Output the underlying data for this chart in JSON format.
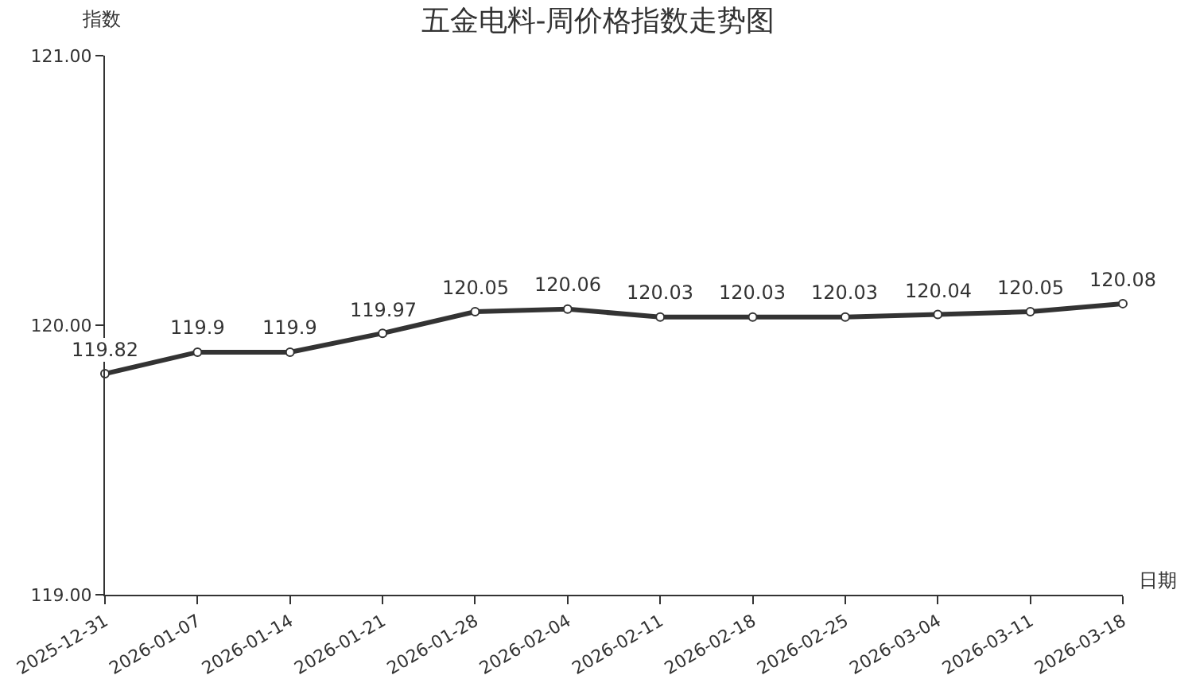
{
  "chart_data": {
    "type": "line",
    "title": "五金电料-周价格指数走势图",
    "xlabel": "日期",
    "ylabel": "指数",
    "categories": [
      "2025-12-31",
      "2026-01-07",
      "2026-01-14",
      "2026-01-21",
      "2026-01-28",
      "2026-02-04",
      "2026-02-11",
      "2026-02-18",
      "2026-02-25",
      "2026-03-04",
      "2026-03-11",
      "2026-03-18"
    ],
    "series": [
      {
        "color": "#333333",
        "values": [
          119.82,
          119.9,
          119.9,
          119.97,
          120.05,
          120.06,
          120.03,
          120.03,
          120.03,
          120.04,
          120.05,
          120.08
        ]
      }
    ],
    "ylim": [
      119,
      121
    ],
    "yticks": [
      {
        "value": 119,
        "label": "119.00"
      },
      {
        "value": 120,
        "label": "120.00"
      },
      {
        "value": 121,
        "label": "121.00"
      }
    ],
    "data_labels": true,
    "marker": "circle",
    "line_style": "solid",
    "grid": false
  }
}
